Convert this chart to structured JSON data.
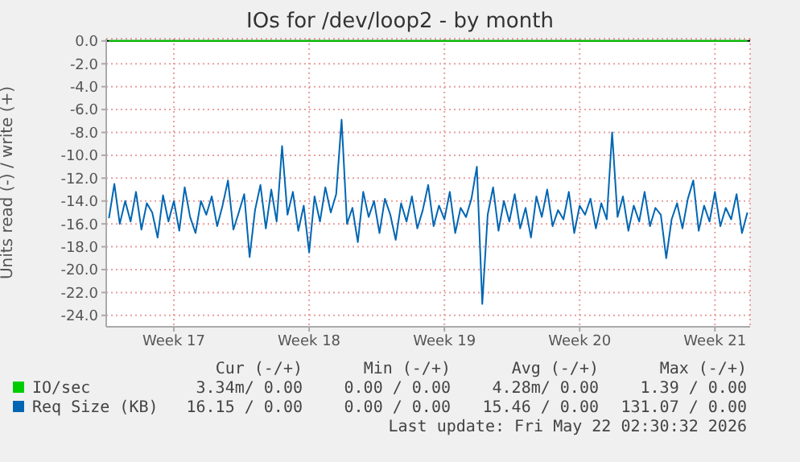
{
  "chart_data": {
    "type": "line",
    "title": "IOs for /dev/loop2 - by month",
    "ylabel": "Units read (-) / write (+)",
    "ylim": [
      -25,
      0.2
    ],
    "yticks": [
      {
        "value": 0,
        "label": "0.0"
      },
      {
        "value": -2,
        "label": "-2.0"
      },
      {
        "value": -4,
        "label": "-4.0"
      },
      {
        "value": -6,
        "label": "-6.0"
      },
      {
        "value": -8,
        "label": "-8.0"
      },
      {
        "value": -10,
        "label": "-10.0"
      },
      {
        "value": -12,
        "label": "-12.0"
      },
      {
        "value": -14,
        "label": "-14.0"
      },
      {
        "value": -16,
        "label": "-16.0"
      },
      {
        "value": -18,
        "label": "-18.0"
      },
      {
        "value": -20,
        "label": "-20.0"
      },
      {
        "value": -22,
        "label": "-22.0"
      },
      {
        "value": -24,
        "label": "-24.0"
      }
    ],
    "grid": true,
    "legend": "bottom",
    "marker": "none",
    "line_style": "solid",
    "ref_lines": [
      {
        "axis": "y",
        "value": 0,
        "label": null,
        "color": "#000000"
      }
    ],
    "categories": [
      null,
      null,
      null,
      null,
      null,
      null,
      null,
      null,
      null,
      null,
      null,
      null,
      "Week 17",
      null,
      null,
      null,
      null,
      null,
      null,
      null,
      null,
      null,
      null,
      null,
      null,
      null,
      null,
      null,
      null,
      null,
      null,
      null,
      null,
      null,
      null,
      null,
      null,
      "Week 18",
      null,
      null,
      null,
      null,
      null,
      null,
      null,
      null,
      null,
      null,
      null,
      null,
      null,
      null,
      null,
      null,
      null,
      null,
      null,
      null,
      null,
      null,
      null,
      null,
      "Week 19",
      null,
      null,
      null,
      null,
      null,
      null,
      null,
      null,
      null,
      null,
      null,
      null,
      null,
      null,
      null,
      null,
      null,
      null,
      null,
      null,
      null,
      null,
      null,
      null,
      "Week 20",
      null,
      null,
      null,
      null,
      null,
      null,
      null,
      null,
      null,
      null,
      null,
      null,
      null,
      null,
      null,
      null,
      null,
      null,
      null,
      null,
      null,
      null,
      null,
      null,
      "Week 21",
      null,
      null,
      null,
      null,
      null,
      null
    ],
    "series": [
      {
        "name": "IO/sec",
        "color": "#00cc00",
        "values": [
          0,
          0,
          0,
          0,
          0,
          0,
          0,
          0,
          0,
          0,
          0,
          0,
          0,
          0,
          0,
          0,
          0,
          0,
          0,
          0,
          0,
          0,
          0,
          0,
          0,
          0,
          0,
          0,
          0,
          0,
          0,
          0,
          0,
          0,
          0,
          0,
          0,
          0,
          0,
          0,
          0,
          0,
          0,
          0,
          0,
          0,
          0,
          0,
          0,
          0,
          0,
          0,
          0,
          0,
          0,
          0,
          0,
          0,
          0,
          0,
          0,
          0,
          0,
          0,
          0,
          0,
          0,
          0,
          0,
          0,
          0,
          0,
          0,
          0,
          0,
          0,
          0,
          0,
          0,
          0,
          0,
          0,
          0,
          0,
          0,
          0,
          0,
          0,
          0,
          0,
          0,
          0,
          0,
          0,
          0,
          0,
          0,
          0,
          0,
          0,
          0,
          0,
          0,
          0,
          0,
          0,
          0,
          0,
          0,
          0,
          0,
          0,
          0,
          0,
          0,
          0,
          0,
          0,
          0
        ]
      },
      {
        "name": "Req Size (KB)",
        "color": "#0066b3",
        "values": [
          -15.5,
          -12.5,
          -16,
          -14,
          -15.8,
          -13.2,
          -16.5,
          -14.2,
          -15,
          -17.2,
          -13.5,
          -15.8,
          -14,
          -16.6,
          -12.8,
          -15.4,
          -16.8,
          -14,
          -15.2,
          -13.6,
          -16.2,
          -14.4,
          -12.2,
          -16.5,
          -15,
          -13.4,
          -18.9,
          -14.8,
          -12.6,
          -16.4,
          -13,
          -15.8,
          -9.2,
          -15.2,
          -13.2,
          -16.6,
          -14.4,
          -18.5,
          -13.6,
          -15.8,
          -12.8,
          -15,
          -13.4,
          -6.9,
          -16,
          -14.6,
          -17.6,
          -13.2,
          -15.4,
          -14,
          -16.8,
          -13.8,
          -15.2,
          -17.4,
          -14.2,
          -15.8,
          -13.6,
          -16.4,
          -14.8,
          -12.6,
          -16.2,
          -14.4,
          -15.6,
          -13.2,
          -16.8,
          -14.6,
          -15.4,
          -13.8,
          -11,
          -23,
          -15.2,
          -12.8,
          -16.6,
          -14,
          -15.8,
          -13.4,
          -16.4,
          -14.6,
          -17.2,
          -13.6,
          -15.4,
          -13,
          -16.2,
          -14.8,
          -15.6,
          -13.2,
          -16.8,
          -14.4,
          -15.2,
          -13.8,
          -16.4,
          -14.2,
          -15.6,
          -8,
          -15.4,
          -13.6,
          -16.6,
          -14.4,
          -15.8,
          -13.2,
          -16.2,
          -14.6,
          -15.2,
          -19,
          -15.6,
          -14.2,
          -16.4,
          -13.8,
          -12.2,
          -16.6,
          -14.4,
          -15.8,
          -13.2,
          -16.2,
          -14.6,
          -15.6,
          -13.4,
          -16.8,
          -15
        ]
      }
    ],
    "annotations": [
      "Cur (-/+)",
      "Min (-/+)",
      "Avg (-/+)",
      "Max (-/+)",
      "3.34m/ 0.00",
      "0.00 / 0.00",
      "4.28m/ 0.00",
      "1.39 / 0.00",
      "16.15 / 0.00",
      "0.00 / 0.00",
      "15.46 / 0.00",
      "131.07 / 0.00",
      "Last update: Fri May 22 02:30:32 2026"
    ]
  }
}
